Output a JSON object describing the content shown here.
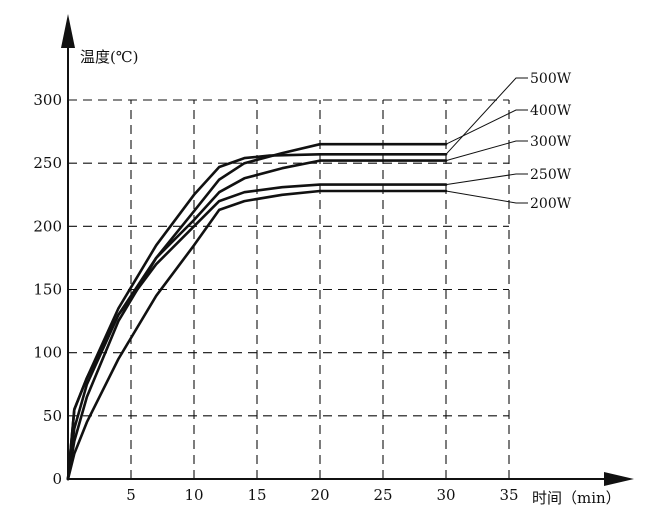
{
  "chart_data": {
    "type": "line",
    "title": "",
    "xlabel": "时间（min）",
    "ylabel": "温度(℃)",
    "xlim": [
      0,
      35
    ],
    "ylim": [
      0,
      300
    ],
    "x_ticks": [
      "5",
      "10",
      "15",
      "20",
      "25",
      "30",
      "35"
    ],
    "y_ticks": [
      "0",
      "50",
      "100",
      "150",
      "200",
      "250",
      "300"
    ],
    "grid": true,
    "legend_placement": "right",
    "series": [
      {
        "name": "500W",
        "points": [
          [
            0,
            0
          ],
          [
            0.5,
            55
          ],
          [
            1.5,
            80
          ],
          [
            4,
            135
          ],
          [
            7,
            185
          ],
          [
            10,
            225
          ],
          [
            12,
            247
          ],
          [
            14,
            254
          ],
          [
            16,
            256
          ],
          [
            20,
            257
          ],
          [
            30,
            257
          ]
        ]
      },
      {
        "name": "400W",
        "points": [
          [
            0,
            0
          ],
          [
            0.5,
            30
          ],
          [
            1.5,
            65
          ],
          [
            4,
            125
          ],
          [
            7,
            175
          ],
          [
            10,
            212
          ],
          [
            12,
            237
          ],
          [
            14,
            250
          ],
          [
            17,
            258
          ],
          [
            20,
            265
          ],
          [
            30,
            265
          ]
        ]
      },
      {
        "name": "300W",
        "points": [
          [
            0,
            0
          ],
          [
            0.5,
            40
          ],
          [
            1.5,
            75
          ],
          [
            4,
            130
          ],
          [
            7,
            175
          ],
          [
            10,
            205
          ],
          [
            12,
            227
          ],
          [
            14,
            238
          ],
          [
            17,
            246
          ],
          [
            20,
            252
          ],
          [
            30,
            252
          ]
        ]
      },
      {
        "name": "250W",
        "points": [
          [
            0,
            0
          ],
          [
            0.5,
            55
          ],
          [
            1.5,
            80
          ],
          [
            4,
            130
          ],
          [
            7,
            170
          ],
          [
            10,
            200
          ],
          [
            11,
            210
          ],
          [
            12,
            220
          ],
          [
            14,
            227
          ],
          [
            17,
            231
          ],
          [
            20,
            233
          ],
          [
            30,
            233
          ]
        ]
      },
      {
        "name": "200W",
        "points": [
          [
            0,
            0
          ],
          [
            0.5,
            20
          ],
          [
            1.5,
            45
          ],
          [
            4,
            95
          ],
          [
            7,
            145
          ],
          [
            10,
            185
          ],
          [
            12,
            213
          ],
          [
            14,
            220
          ],
          [
            17,
            225
          ],
          [
            20,
            228
          ],
          [
            30,
            228
          ]
        ]
      }
    ]
  }
}
